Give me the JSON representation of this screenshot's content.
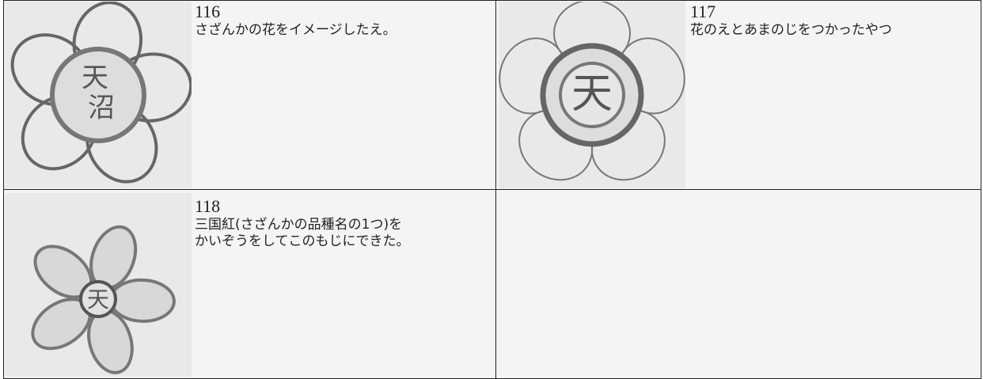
{
  "entries": [
    {
      "number": "116",
      "lines": [
        "さざんかの花をイメージしたえ。"
      ],
      "emblem": [
        "天",
        "沼"
      ]
    },
    {
      "number": "117",
      "lines": [
        "花のえとあまのじをつかったやつ"
      ],
      "emblem": [
        "天"
      ]
    },
    {
      "number": "118",
      "lines": [
        "三国紅(さざんかの品種名の1つ)を",
        "かいぞうをしてこのもじにできた。"
      ],
      "emblem": [
        "天"
      ]
    }
  ]
}
